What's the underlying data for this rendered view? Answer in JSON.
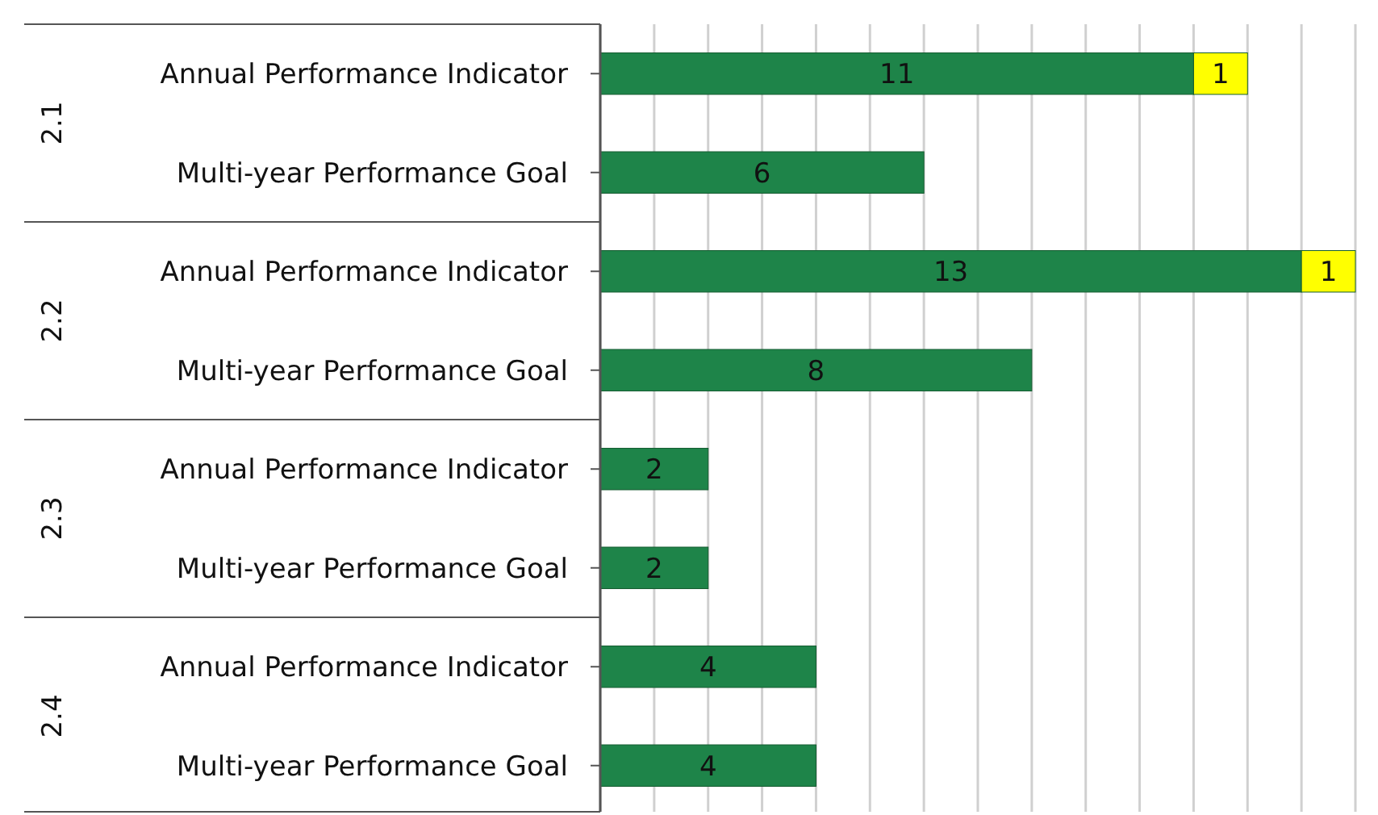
{
  "chart_data": {
    "type": "bar",
    "orientation": "horizontal",
    "stacked": true,
    "categories": [
      "Annual Performance Indicator",
      "Multi-year Performance Goal",
      "Annual Performance Indicator",
      "Multi-year Performance Goal",
      "Annual Performance Indicator",
      "Multi-year Performance Goal",
      "Annual Performance Indicator",
      "Multi-year Performance Goal"
    ],
    "series": [
      {
        "color": "#1e8449",
        "values": [
          11,
          6,
          13,
          8,
          2,
          2,
          4,
          4
        ]
      },
      {
        "color": "#ffff00",
        "values": [
          1,
          null,
          1,
          null,
          null,
          null,
          null,
          null
        ]
      }
    ],
    "annotations": [
      "2.1",
      "2.2",
      "2.3",
      "2.4"
    ],
    "xlim": [
      0,
      14
    ],
    "xticks": [
      {
        "value": 0,
        "label": null
      },
      {
        "value": 1,
        "label": null
      },
      {
        "value": 2,
        "label": null
      },
      {
        "value": 3,
        "label": null
      },
      {
        "value": 4,
        "label": null
      },
      {
        "value": 5,
        "label": null
      },
      {
        "value": 6,
        "label": null
      },
      {
        "value": 7,
        "label": null
      },
      {
        "value": 8,
        "label": null
      },
      {
        "value": 9,
        "label": null
      },
      {
        "value": 10,
        "label": null
      },
      {
        "value": 11,
        "label": null
      },
      {
        "value": 12,
        "label": null
      },
      {
        "value": 13,
        "label": null
      },
      {
        "value": 14,
        "label": null
      }
    ],
    "grid": "x",
    "tick_labels": "y",
    "data_labels": true
  }
}
